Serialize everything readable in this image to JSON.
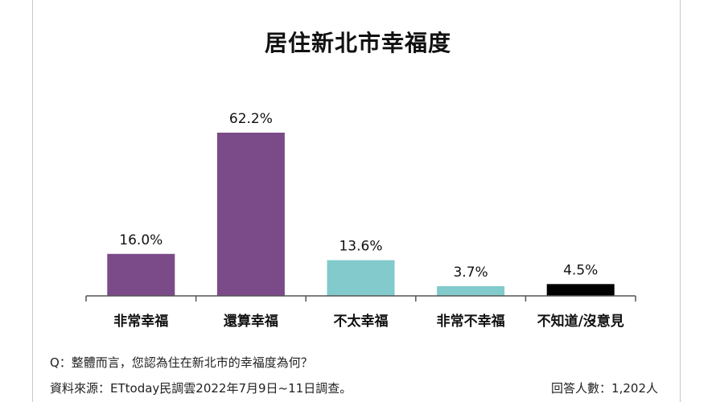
{
  "chart_data": {
    "type": "bar",
    "title": "居住新北市幸福度",
    "categories": [
      "非常幸福",
      "還算幸福",
      "不太幸福",
      "非常不幸福",
      "不知道/沒意見"
    ],
    "values": [
      16.0,
      62.2,
      13.6,
      3.7,
      4.5
    ],
    "data_labels": [
      "16.0%",
      "62.2%",
      "13.6%",
      "3.7%",
      "4.5%"
    ],
    "colors": [
      "#7b4a88",
      "#7b4a88",
      "#82cacb",
      "#82cacb",
      "#000000"
    ],
    "xlabel": "",
    "ylabel": "",
    "ylim": [
      0,
      65
    ],
    "grid": false
  },
  "footer": {
    "question": "Q：整體而言，您認為住在新北市的幸福度為何？",
    "source": "資料來源：ETtoday民調雲2022年7月9日~11日調查。",
    "respondents": "回答人數：1,202人"
  }
}
